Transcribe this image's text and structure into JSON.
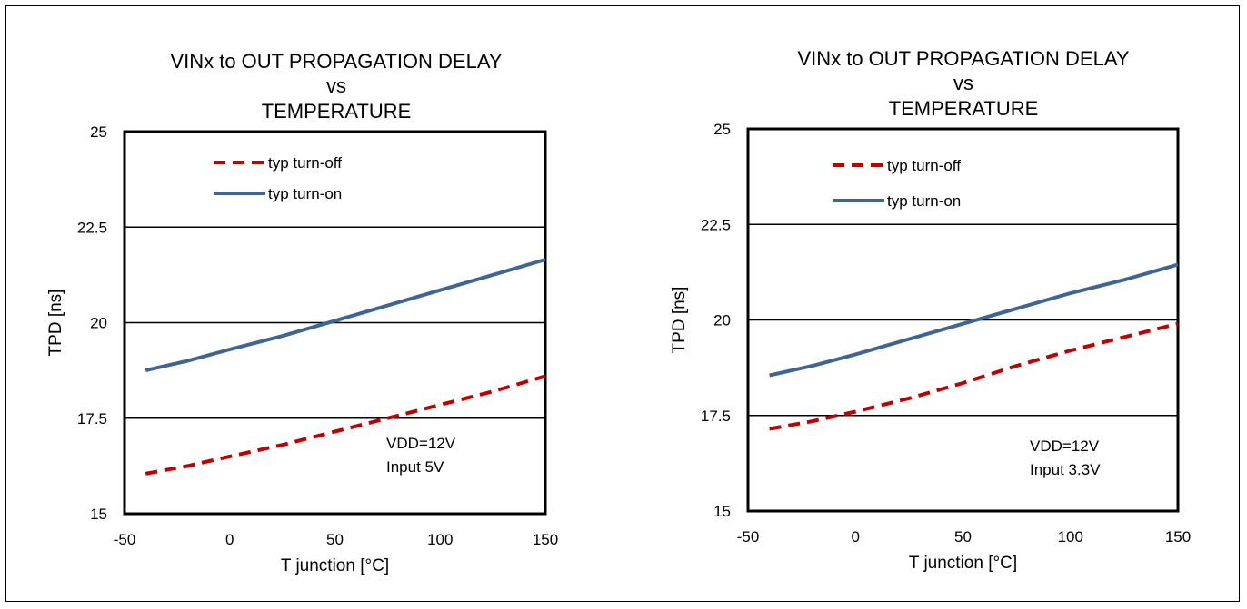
{
  "colors": {
    "turn_off": "#c00000",
    "turn_on": "#3f6594"
  },
  "chart_data": [
    {
      "type": "line",
      "title": [
        "VINx to OUT PROPAGATION DELAY",
        "vs",
        "TEMPERATURE"
      ],
      "xlabel": "T junction  [°C]",
      "ylabel": "TPD [ns]",
      "xlim": [
        -50,
        150
      ],
      "ylim": [
        15,
        25
      ],
      "xticks": [
        "-50",
        "0",
        "50",
        "100",
        "150"
      ],
      "yticks": [
        "15",
        "17.5",
        "20",
        "22.5",
        "25"
      ],
      "grid": "horizontal",
      "legend": "top-left",
      "annotations": [
        "VDD=12V",
        "Input 5V"
      ],
      "series": [
        {
          "name": "typ turn-off",
          "style": "dashed",
          "color": "#c00000",
          "x": [
            -40,
            -20,
            0,
            25,
            50,
            75,
            100,
            125,
            150
          ],
          "y": [
            16.05,
            16.25,
            16.5,
            16.8,
            17.15,
            17.5,
            17.85,
            18.2,
            18.6
          ]
        },
        {
          "name": "typ turn-on",
          "style": "solid",
          "color": "#3f6594",
          "x": [
            -40,
            -20,
            0,
            25,
            50,
            75,
            100,
            125,
            150
          ],
          "y": [
            18.75,
            19.0,
            19.3,
            19.65,
            20.05,
            20.45,
            20.85,
            21.25,
            21.65
          ]
        }
      ]
    },
    {
      "type": "line",
      "title": [
        "VINx to OUT PROPAGATION DELAY",
        "vs",
        "TEMPERATURE"
      ],
      "xlabel": "T junction  [°C]",
      "ylabel": "TPD [ns]",
      "xlim": [
        -50,
        150
      ],
      "ylim": [
        15,
        25
      ],
      "xticks": [
        "-50",
        "0",
        "50",
        "100",
        "150"
      ],
      "yticks": [
        "15",
        "17.5",
        "20",
        "22.5",
        "25"
      ],
      "grid": "horizontal",
      "legend": "top-left",
      "annotations": [
        "VDD=12V",
        "Input 3.3V"
      ],
      "series": [
        {
          "name": "typ turn-off",
          "style": "dashed",
          "color": "#c00000",
          "x": [
            -40,
            -20,
            0,
            25,
            50,
            75,
            100,
            125,
            150
          ],
          "y": [
            17.15,
            17.35,
            17.6,
            17.95,
            18.35,
            18.8,
            19.2,
            19.55,
            19.9
          ]
        },
        {
          "name": "typ turn-on",
          "style": "solid",
          "color": "#3f6594",
          "x": [
            -40,
            -20,
            0,
            25,
            50,
            75,
            100,
            125,
            150
          ],
          "y": [
            18.55,
            18.8,
            19.1,
            19.5,
            19.9,
            20.3,
            20.7,
            21.05,
            21.45
          ]
        }
      ]
    }
  ]
}
